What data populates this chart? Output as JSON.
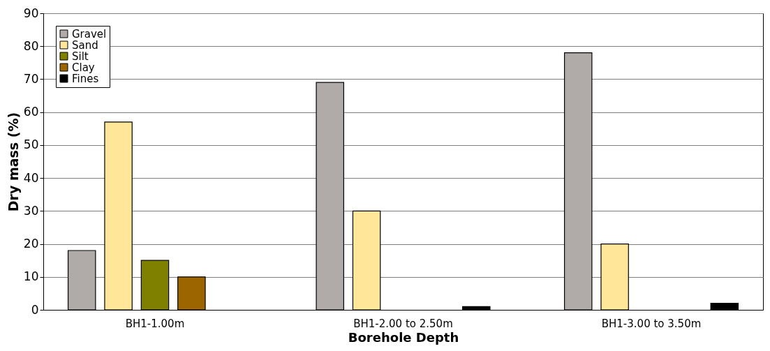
{
  "chart_data": {
    "type": "bar",
    "xlabel": "Borehole Depth",
    "ylabel": "Dry mass (%)",
    "categories": [
      "BH1-1.00m",
      "BH1-2.00 to 2.50m",
      "BH1-3.00 to 3.50m"
    ],
    "series": [
      {
        "name": "Gravel",
        "color": "#b0aba9",
        "values": [
          18,
          69,
          78
        ]
      },
      {
        "name": "Sand",
        "color": "#ffe699",
        "values": [
          57,
          30,
          20
        ]
      },
      {
        "name": "Silt",
        "color": "#7f7f00",
        "values": [
          15,
          null,
          null
        ]
      },
      {
        "name": "Clay",
        "color": "#9c6500",
        "values": [
          10,
          null,
          null
        ]
      },
      {
        "name": "Fines",
        "color": "#000000",
        "values": [
          null,
          1,
          2
        ]
      }
    ],
    "ylim": [
      0,
      90
    ],
    "yticks": [
      0,
      10,
      20,
      30,
      40,
      50,
      60,
      70,
      80,
      90
    ],
    "grid": "y",
    "legend": "top left"
  }
}
